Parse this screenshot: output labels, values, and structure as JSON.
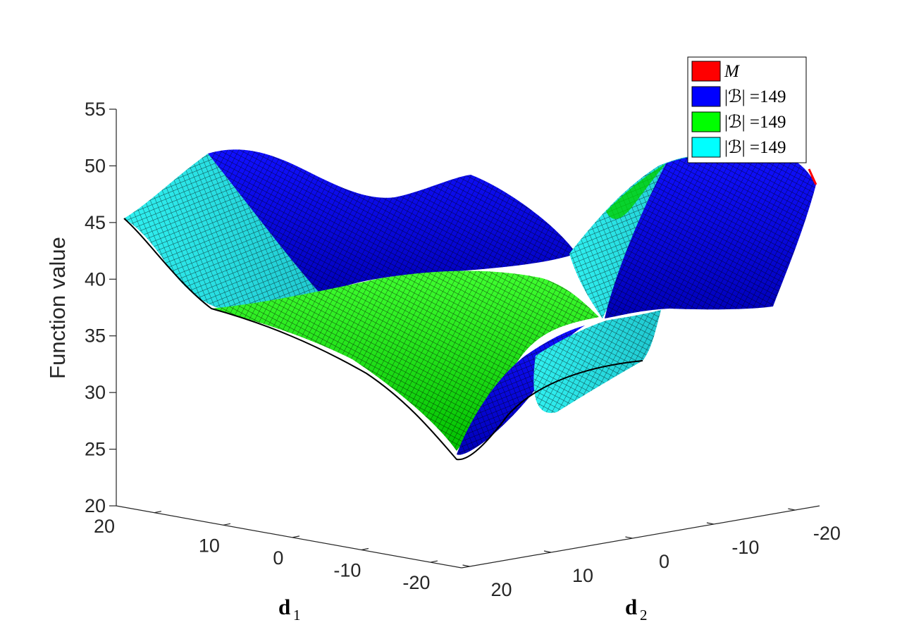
{
  "chart_data": {
    "type": "surface3d",
    "title": "",
    "zlabel": "Function value",
    "xlabel": {
      "base": "d",
      "sub": "1"
    },
    "ylabel": {
      "base": "d",
      "sub": "2"
    },
    "zlim": [
      20,
      55
    ],
    "z_ticks": [
      "20",
      "25",
      "30",
      "35",
      "40",
      "45",
      "50",
      "55"
    ],
    "d1_ticks": [
      "20",
      "10",
      "0",
      "-10",
      "-20"
    ],
    "d2_ticks": [
      "20",
      "10",
      "0",
      "-10",
      "-20"
    ],
    "legend": [
      {
        "label": "M",
        "color": "#ff0000"
      },
      {
        "label": "|ℬ| =149",
        "color": "#0000ff"
      },
      {
        "label": "|ℬ| =149",
        "color": "#00ff00"
      },
      {
        "label": "|ℬ| =149",
        "color": "#00ffff"
      }
    ],
    "surface": {
      "min_value": 24,
      "max_value": 50,
      "colors": {
        "blue": "#0000e6",
        "green": "#00e600",
        "cyan": "#40e0e0",
        "red": "#ff0000",
        "mesh": "#000000"
      }
    }
  }
}
